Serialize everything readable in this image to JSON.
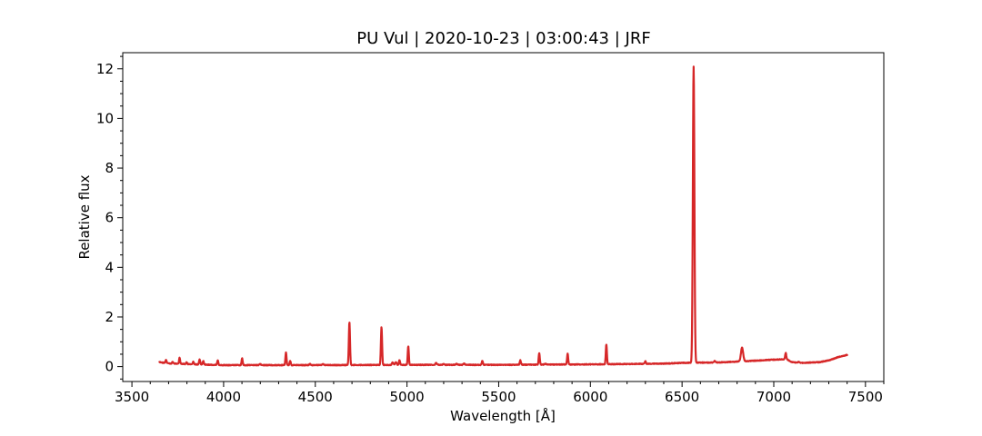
{
  "chart_data": {
    "type": "line",
    "title": "PU Vul | 2020-10-23 | 03:00:43 | JRF",
    "xlabel": "Wavelength [Å]",
    "ylabel": "Relative flux",
    "xlim": [
      3450,
      7600
    ],
    "ylim": [
      -0.6,
      12.65
    ],
    "x_ticks": [
      3500,
      4000,
      4500,
      5000,
      5500,
      6000,
      6500,
      7000,
      7500
    ],
    "y_ticks": [
      0,
      2,
      4,
      6,
      8,
      10,
      12
    ],
    "y_minor_step": 0.5,
    "x_minor_step": 100,
    "ticks_direction": "in",
    "grid": false,
    "legend": "none",
    "color": "#d62728",
    "x_range": [
      3650,
      7400
    ],
    "continuum": [
      [
        3650,
        0.18
      ],
      [
        3700,
        0.13
      ],
      [
        3800,
        0.1
      ],
      [
        3900,
        0.08
      ],
      [
        4000,
        0.06
      ],
      [
        4500,
        0.06
      ],
      [
        5000,
        0.07
      ],
      [
        5500,
        0.07
      ],
      [
        6000,
        0.09
      ],
      [
        6400,
        0.12
      ],
      [
        6500,
        0.15
      ],
      [
        6700,
        0.17
      ],
      [
        6800,
        0.2
      ],
      [
        6900,
        0.24
      ],
      [
        7000,
        0.28
      ],
      [
        7070,
        0.3
      ],
      [
        7100,
        0.18
      ],
      [
        7150,
        0.15
      ],
      [
        7250,
        0.18
      ],
      [
        7300,
        0.25
      ],
      [
        7350,
        0.38
      ],
      [
        7400,
        0.47
      ]
    ],
    "emission_lines": [
      {
        "x": 3686,
        "height": 0.12,
        "sigma": 3
      },
      {
        "x": 3722,
        "height": 0.06,
        "sigma": 3
      },
      {
        "x": 3760,
        "height": 0.25,
        "sigma": 3
      },
      {
        "x": 3798,
        "height": 0.08,
        "sigma": 3
      },
      {
        "x": 3835,
        "height": 0.1,
        "sigma": 3
      },
      {
        "x": 3869,
        "height": 0.2,
        "sigma": 3
      },
      {
        "x": 3889,
        "height": 0.15,
        "sigma": 3
      },
      {
        "x": 3968,
        "height": 0.18,
        "sigma": 3
      },
      {
        "x": 4101,
        "height": 0.27,
        "sigma": 3
      },
      {
        "x": 4200,
        "height": 0.04,
        "sigma": 4
      },
      {
        "x": 4340,
        "height": 0.5,
        "sigma": 3
      },
      {
        "x": 4363,
        "height": 0.17,
        "sigma": 3
      },
      {
        "x": 4471,
        "height": 0.04,
        "sigma": 4
      },
      {
        "x": 4541,
        "height": 0.04,
        "sigma": 4
      },
      {
        "x": 4686,
        "height": 1.72,
        "sigma": 3.2
      },
      {
        "x": 4861,
        "height": 1.52,
        "sigma": 3.2
      },
      {
        "x": 4922,
        "height": 0.1,
        "sigma": 4
      },
      {
        "x": 4940,
        "height": 0.12,
        "sigma": 4
      },
      {
        "x": 4959,
        "height": 0.2,
        "sigma": 3
      },
      {
        "x": 5007,
        "height": 0.75,
        "sigma": 3
      },
      {
        "x": 5159,
        "height": 0.08,
        "sigma": 4
      },
      {
        "x": 5200,
        "height": 0.04,
        "sigma": 4
      },
      {
        "x": 5270,
        "height": 0.05,
        "sigma": 4
      },
      {
        "x": 5311,
        "height": 0.05,
        "sigma": 4
      },
      {
        "x": 5411,
        "height": 0.17,
        "sigma": 3
      },
      {
        "x": 5618,
        "height": 0.18,
        "sigma": 3
      },
      {
        "x": 5721,
        "height": 0.47,
        "sigma": 3
      },
      {
        "x": 5754,
        "height": 0.04,
        "sigma": 4
      },
      {
        "x": 5876,
        "height": 0.43,
        "sigma": 3
      },
      {
        "x": 6087,
        "height": 0.8,
        "sigma": 3
      },
      {
        "x": 6300,
        "height": 0.1,
        "sigma": 3
      },
      {
        "x": 6563,
        "height": 11.93,
        "sigma": 4.2
      },
      {
        "x": 6678,
        "height": 0.06,
        "sigma": 4
      },
      {
        "x": 6827,
        "height": 0.55,
        "sigma": 6
      },
      {
        "x": 7065,
        "height": 0.25,
        "sigma": 3
      },
      {
        "x": 7136,
        "height": 0.03,
        "sigma": 4
      }
    ]
  }
}
